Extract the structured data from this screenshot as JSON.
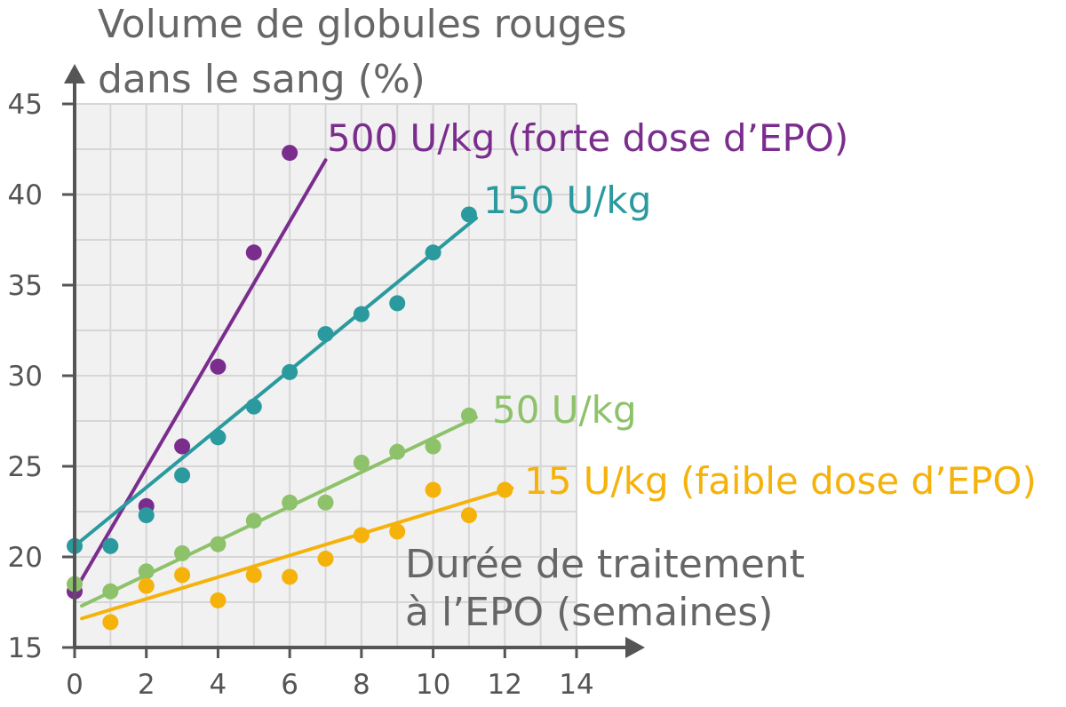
{
  "chart_data": {
    "type": "scatter",
    "ylabel_line1": "Volume de globules rouges",
    "ylabel_line2": "dans le sang (%)",
    "xlabel_line1": "Durée de traitement",
    "xlabel_line2": "à l’EPO (semaines)",
    "xlim": [
      0,
      14
    ],
    "ylim": [
      15,
      45
    ],
    "x_ticks": [
      0,
      2,
      4,
      6,
      8,
      10,
      12,
      14
    ],
    "y_ticks": [
      15,
      20,
      25,
      30,
      35,
      40,
      45
    ],
    "grid": true,
    "series": [
      {
        "name": "500 U/kg (forte dose d’EPO)",
        "color": "#7b2d8e",
        "points": [
          [
            0,
            18.1
          ],
          [
            2,
            22.8
          ],
          [
            3,
            26.1
          ],
          [
            4,
            30.5
          ],
          [
            5,
            36.8
          ],
          [
            6,
            42.3
          ]
        ],
        "trend": [
          [
            0,
            18.1
          ],
          [
            7,
            41.9
          ]
        ]
      },
      {
        "name": "150 U/kg",
        "color": "#2a9a9f",
        "points": [
          [
            0,
            20.6
          ],
          [
            1,
            20.6
          ],
          [
            2,
            22.3
          ],
          [
            3,
            24.5
          ],
          [
            4,
            26.6
          ],
          [
            5,
            28.3
          ],
          [
            6,
            30.2
          ],
          [
            7,
            32.3
          ],
          [
            8,
            33.4
          ],
          [
            9,
            34.0
          ],
          [
            10,
            36.8
          ],
          [
            11,
            38.9
          ]
        ],
        "trend": [
          [
            0,
            20.6
          ],
          [
            11.2,
            38.7
          ]
        ]
      },
      {
        "name": "50 U/kg",
        "color": "#8dc26a",
        "points": [
          [
            0,
            18.5
          ],
          [
            1,
            18.1
          ],
          [
            2,
            19.2
          ],
          [
            3,
            20.2
          ],
          [
            4,
            20.7
          ],
          [
            5,
            22.0
          ],
          [
            6,
            23.0
          ],
          [
            7,
            23.0
          ],
          [
            8,
            25.2
          ],
          [
            9,
            25.8
          ],
          [
            10,
            26.1
          ],
          [
            11,
            27.8
          ]
        ],
        "trend": [
          [
            0.2,
            17.3
          ],
          [
            11.2,
            27.7
          ]
        ]
      },
      {
        "name": "15 U/kg (faible dose d’EPO)",
        "color": "#f5b20a",
        "points": [
          [
            1,
            16.4
          ],
          [
            2,
            18.4
          ],
          [
            3,
            19.0
          ],
          [
            4,
            17.6
          ],
          [
            5,
            19.0
          ],
          [
            6,
            18.9
          ],
          [
            7,
            19.9
          ],
          [
            8,
            21.2
          ],
          [
            9,
            21.4
          ],
          [
            10,
            23.7
          ],
          [
            11,
            22.3
          ],
          [
            12,
            23.7
          ]
        ],
        "trend": [
          [
            0.2,
            16.6
          ],
          [
            12.2,
            23.8
          ]
        ]
      }
    ]
  }
}
